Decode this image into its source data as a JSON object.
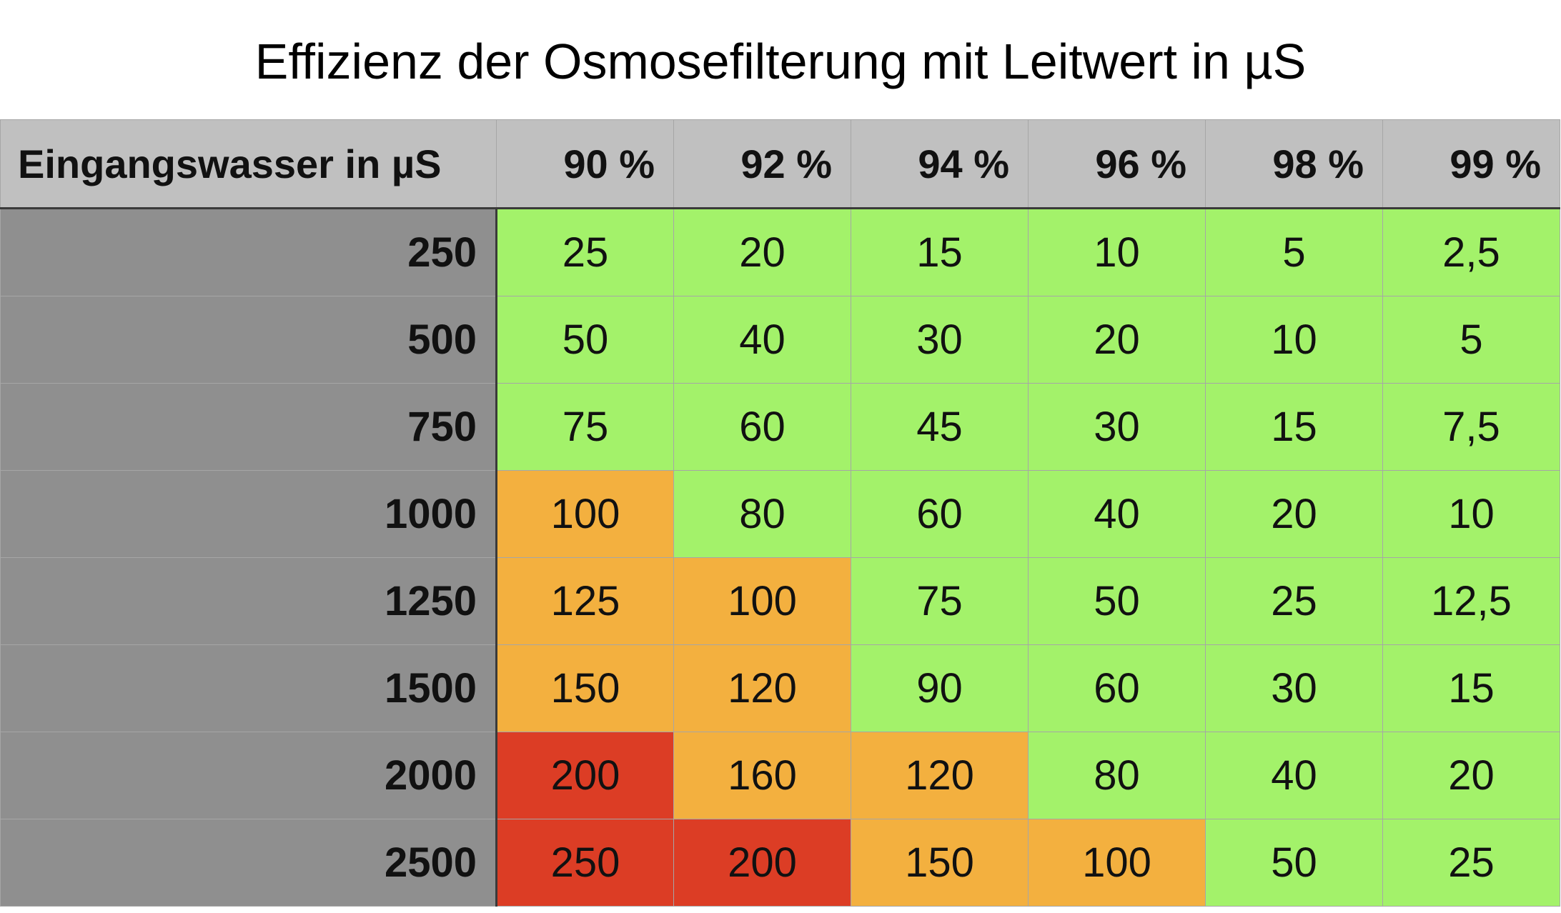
{
  "title": "Effizienz der Osmosefilterung mit Leitwert in µS",
  "colors": {
    "green": "#a3f26a",
    "orange": "#f3b03f",
    "red": "#dc3d25",
    "header": "#c0c0c0",
    "row_header": "#8f8f8f"
  },
  "chart_data": {
    "type": "table",
    "title": "Effizienz der Osmosefilterung mit Leitwert in µS",
    "corner_label": "Eingangswasser in µS",
    "columns": [
      "90 %",
      "92 %",
      "94 %",
      "96 %",
      "98 %",
      "99 %"
    ],
    "rows": [
      {
        "label": "250",
        "values": [
          "25",
          "20",
          "15",
          "10",
          "5",
          "2,5"
        ],
        "levels": [
          "green",
          "green",
          "green",
          "green",
          "green",
          "green"
        ]
      },
      {
        "label": "500",
        "values": [
          "50",
          "40",
          "30",
          "20",
          "10",
          "5"
        ],
        "levels": [
          "green",
          "green",
          "green",
          "green",
          "green",
          "green"
        ]
      },
      {
        "label": "750",
        "values": [
          "75",
          "60",
          "45",
          "30",
          "15",
          "7,5"
        ],
        "levels": [
          "green",
          "green",
          "green",
          "green",
          "green",
          "green"
        ]
      },
      {
        "label": "1000",
        "values": [
          "100",
          "80",
          "60",
          "40",
          "20",
          "10"
        ],
        "levels": [
          "orange",
          "green",
          "green",
          "green",
          "green",
          "green"
        ]
      },
      {
        "label": "1250",
        "values": [
          "125",
          "100",
          "75",
          "50",
          "25",
          "12,5"
        ],
        "levels": [
          "orange",
          "orange",
          "green",
          "green",
          "green",
          "green"
        ]
      },
      {
        "label": "1500",
        "values": [
          "150",
          "120",
          "90",
          "60",
          "30",
          "15"
        ],
        "levels": [
          "orange",
          "orange",
          "green",
          "green",
          "green",
          "green"
        ]
      },
      {
        "label": "2000",
        "values": [
          "200",
          "160",
          "120",
          "80",
          "40",
          "20"
        ],
        "levels": [
          "red",
          "orange",
          "orange",
          "green",
          "green",
          "green"
        ]
      },
      {
        "label": "2500",
        "values": [
          "250",
          "200",
          "150",
          "100",
          "50",
          "25"
        ],
        "levels": [
          "red",
          "red",
          "orange",
          "orange",
          "green",
          "green"
        ]
      }
    ]
  }
}
